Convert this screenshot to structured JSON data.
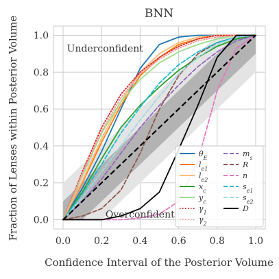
{
  "chart_data": {
    "type": "line",
    "title": "BNN",
    "xlabel": "Confidence Interval of the Posterior Volume",
    "ylabel": "Fraction of Lenses within Posterior Volume",
    "xlim": [
      -0.05,
      1.05
    ],
    "ylim": [
      -0.05,
      1.05
    ],
    "xticks": [
      "0.0",
      "0.2",
      "0.4",
      "0.6",
      "0.8",
      "1.0"
    ],
    "yticks": [
      "0.0",
      "0.2",
      "0.4",
      "0.6",
      "0.8",
      "1.0"
    ],
    "grid": true,
    "legend_position": "bottom-right",
    "annotations": [
      {
        "text": "Underconfident",
        "x": 0.02,
        "y": 0.93
      },
      {
        "text": "Overconfident",
        "x": 0.22,
        "y": 0.03
      }
    ],
    "bands": [
      {
        "name": "outer",
        "color": "#e4e4e4",
        "half_width": 0.2
      },
      {
        "name": "inner",
        "color": "#b3b3b3",
        "half_width": 0.1
      }
    ],
    "reference": {
      "x": [
        0,
        1
      ],
      "y": [
        0,
        1
      ],
      "color": "#000000",
      "dash": "dashed"
    },
    "series": [
      {
        "name": "θ_E",
        "color": "#1f77b4",
        "dash": "solid",
        "x": [
          0,
          0.1,
          0.2,
          0.3,
          0.4,
          0.5,
          0.6,
          0.7,
          0.8,
          0.9,
          1.0
        ],
        "y": [
          0,
          0.17,
          0.37,
          0.6,
          0.82,
          0.95,
          0.99,
          1.0,
          1.0,
          1.0,
          1.0
        ]
      },
      {
        "name": "l_e1",
        "color": "#ff7f0e",
        "dash": "solid",
        "x": [
          0,
          0.1,
          0.2,
          0.3,
          0.4,
          0.5,
          0.6,
          0.7,
          0.8,
          0.9,
          1.0
        ],
        "y": [
          0,
          0.2,
          0.42,
          0.62,
          0.78,
          0.88,
          0.95,
          0.98,
          1.0,
          1.0,
          1.0
        ]
      },
      {
        "name": "l_e2",
        "color": "#ffbb78",
        "dash": "solid",
        "x": [
          0,
          0.1,
          0.2,
          0.3,
          0.4,
          0.5,
          0.6,
          0.7,
          0.8,
          0.9,
          1.0
        ],
        "y": [
          0,
          0.21,
          0.44,
          0.64,
          0.8,
          0.9,
          0.96,
          0.99,
          1.0,
          1.0,
          1.0
        ]
      },
      {
        "name": "x_c",
        "color": "#2ca02c",
        "dash": "solid",
        "x": [
          0,
          0.1,
          0.2,
          0.3,
          0.4,
          0.5,
          0.6,
          0.7,
          0.8,
          0.9,
          1.0
        ],
        "y": [
          0,
          0.15,
          0.33,
          0.5,
          0.62,
          0.72,
          0.81,
          0.88,
          0.94,
          0.98,
          1.0
        ]
      },
      {
        "name": "y_c",
        "color": "#98df8a",
        "dash": "solid",
        "x": [
          0,
          0.1,
          0.2,
          0.3,
          0.4,
          0.5,
          0.6,
          0.7,
          0.8,
          0.9,
          1.0
        ],
        "y": [
          0,
          0.24,
          0.47,
          0.64,
          0.76,
          0.85,
          0.91,
          0.95,
          0.98,
          1.0,
          1.0
        ]
      },
      {
        "name": "γ_1",
        "color": "#d62728",
        "dash": "dotted",
        "x": [
          0,
          0.1,
          0.2,
          0.3,
          0.4,
          0.5,
          0.6,
          0.7,
          0.8,
          0.9,
          1.0
        ],
        "y": [
          0,
          0.26,
          0.5,
          0.68,
          0.8,
          0.88,
          0.94,
          0.98,
          1.0,
          1.0,
          1.0
        ]
      },
      {
        "name": "γ_2",
        "color": "#ff9896",
        "dash": "dotted",
        "x": [
          0,
          0.1,
          0.2,
          0.3,
          0.4,
          0.5,
          0.6,
          0.7,
          0.8,
          0.9,
          1.0
        ],
        "y": [
          0,
          0.25,
          0.48,
          0.66,
          0.79,
          0.87,
          0.93,
          0.97,
          0.99,
          1.0,
          1.0
        ]
      },
      {
        "name": "m_s",
        "color": "#9467bd",
        "dash": "dashed",
        "x": [
          0,
          0.1,
          0.2,
          0.3,
          0.4,
          0.5,
          0.6,
          0.7,
          0.8,
          0.9,
          1.0
        ],
        "y": [
          0,
          0.1,
          0.22,
          0.36,
          0.5,
          0.62,
          0.73,
          0.83,
          0.91,
          0.97,
          1.0
        ]
      },
      {
        "name": "R",
        "color": "#8c564b",
        "dash": "dashed",
        "x": [
          0,
          0.1,
          0.2,
          0.3,
          0.4,
          0.5,
          0.6,
          0.7,
          0.8,
          0.9,
          1.0
        ],
        "y": [
          0,
          0.02,
          0.06,
          0.16,
          0.36,
          0.6,
          0.78,
          0.9,
          0.96,
          0.99,
          1.0
        ]
      },
      {
        "name": "n",
        "color": "#e377c2",
        "dash": "dashed",
        "x": [
          0,
          0.1,
          0.2,
          0.3,
          0.4,
          0.5,
          0.6,
          0.7,
          0.8,
          0.9,
          1.0
        ],
        "y": [
          0,
          0,
          0,
          0,
          0.01,
          0.03,
          0.1,
          0.32,
          0.7,
          0.93,
          1.0
        ]
      },
      {
        "name": "s_e1",
        "color": "#17becf",
        "dash": "dashed",
        "x": [
          0,
          0.1,
          0.2,
          0.3,
          0.4,
          0.5,
          0.6,
          0.7,
          0.8,
          0.9,
          1.0
        ],
        "y": [
          0,
          0.14,
          0.3,
          0.47,
          0.61,
          0.74,
          0.84,
          0.91,
          0.96,
          0.99,
          1.0
        ]
      },
      {
        "name": "s_e2",
        "color": "#9edae5",
        "dash": "dashed",
        "x": [
          0,
          0.1,
          0.2,
          0.3,
          0.4,
          0.5,
          0.6,
          0.7,
          0.8,
          0.9,
          1.0
        ],
        "y": [
          0,
          0.12,
          0.26,
          0.4,
          0.54,
          0.67,
          0.79,
          0.88,
          0.95,
          0.99,
          1.0
        ]
      },
      {
        "name": "D",
        "color": "#000000",
        "dash": "solid",
        "x": [
          0,
          0.1,
          0.2,
          0.3,
          0.4,
          0.5,
          0.6,
          0.7,
          0.8,
          0.9,
          1.0
        ],
        "y": [
          0,
          0,
          0,
          0.02,
          0.06,
          0.15,
          0.38,
          0.62,
          0.88,
          1.0,
          1.0
        ]
      }
    ]
  }
}
